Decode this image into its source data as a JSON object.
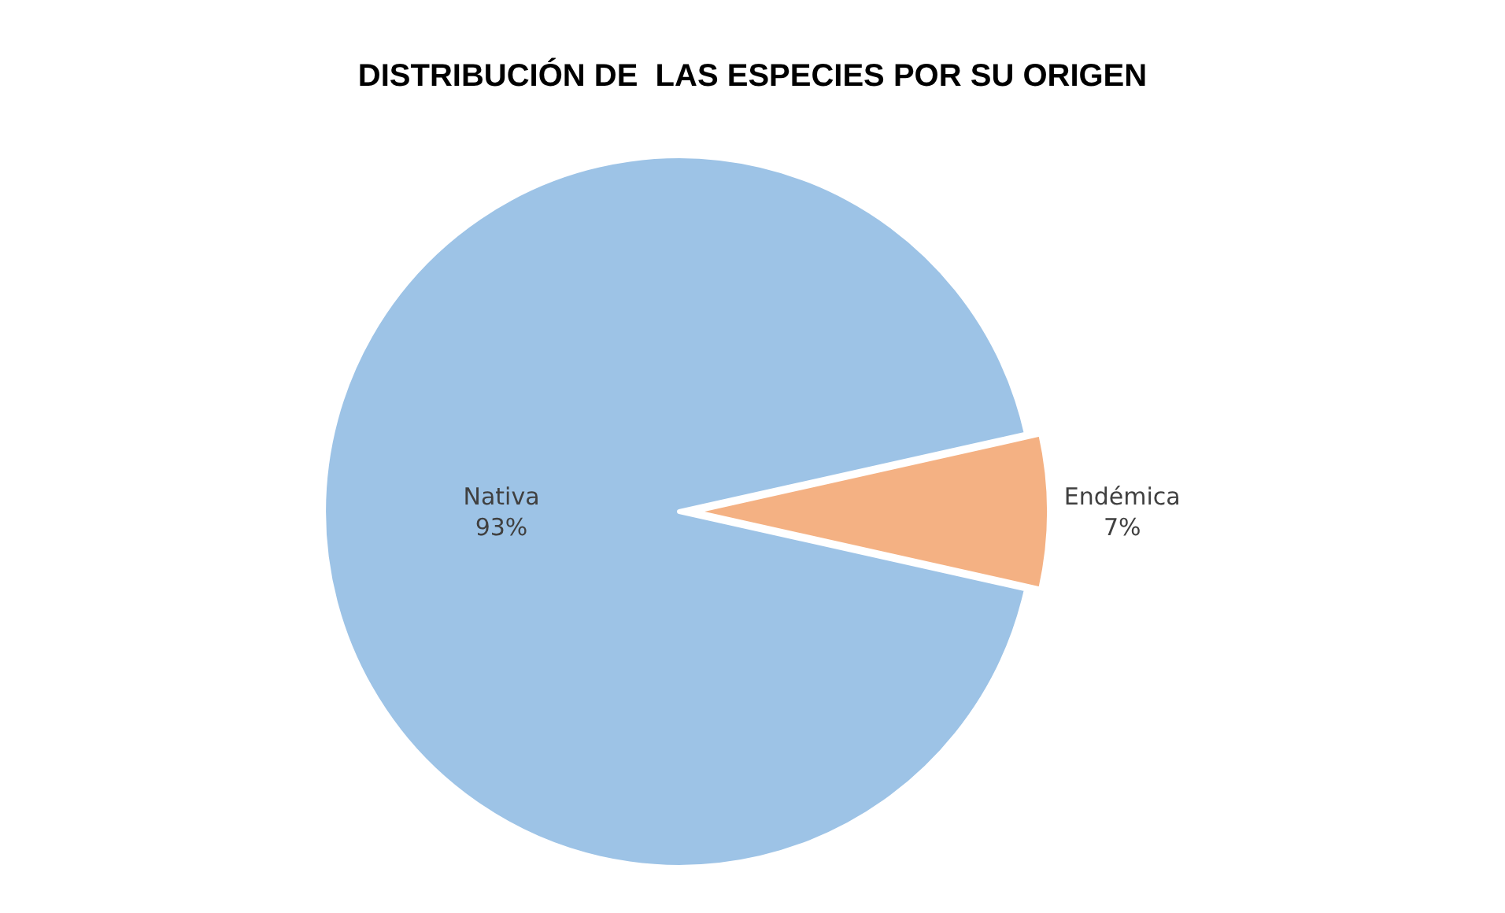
{
  "chart_data": {
    "type": "pie",
    "title": "DISTRIBUCIÓN DE  LAS ESPECIES POR SU ORIGEN",
    "categories": [
      "Nativa",
      "Endémica"
    ],
    "values": [
      93,
      7
    ],
    "colors": [
      "#9dc3e6",
      "#f4b183"
    ],
    "value_labels": [
      "93%",
      "7%"
    ],
    "legend": false
  }
}
